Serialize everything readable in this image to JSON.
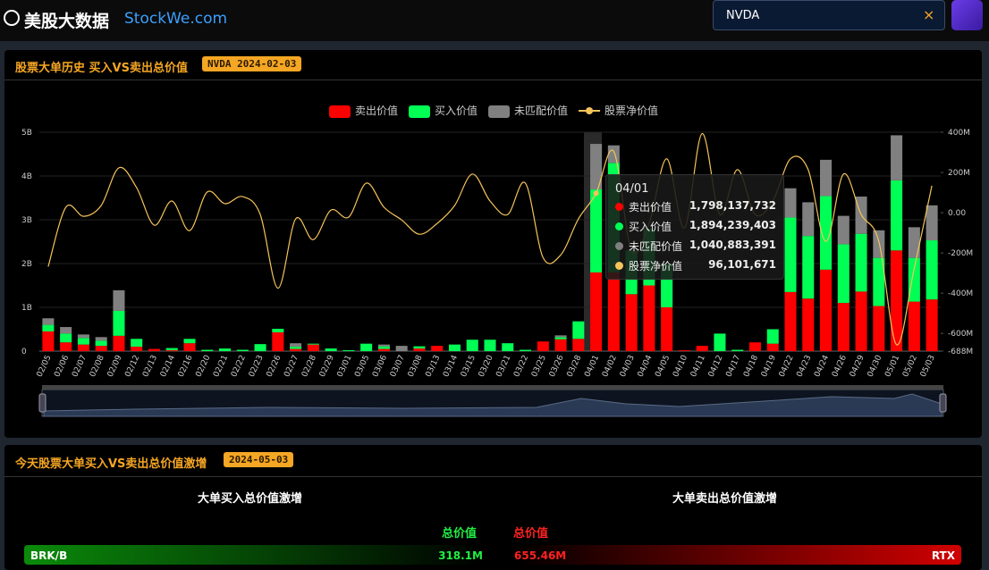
{
  "header": {
    "logo": "美股大数据",
    "site": "StockWe.com",
    "search": "NVDA"
  },
  "panel1": {
    "title": "股票大单历史 买入VS卖出总价值",
    "badge": "NVDA 2024-02-03"
  },
  "chart_data": {
    "type": "bar",
    "stacked": true,
    "categories": [
      "02/05",
      "02/06",
      "02/07",
      "02/08",
      "02/09",
      "02/12",
      "02/13",
      "02/14",
      "02/16",
      "02/20",
      "02/21",
      "02/22",
      "02/23",
      "02/26",
      "02/27",
      "02/28",
      "02/29",
      "03/01",
      "03/05",
      "03/06",
      "03/07",
      "03/08",
      "03/13",
      "03/14",
      "03/15",
      "03/20",
      "03/21",
      "03/22",
      "03/25",
      "03/26",
      "03/28",
      "04/01",
      "04/02",
      "04/03",
      "04/04",
      "04/05",
      "04/10",
      "04/11",
      "04/12",
      "04/17",
      "04/18",
      "04/19",
      "04/22",
      "04/23",
      "04/24",
      "04/26",
      "04/29",
      "04/30",
      "05/01",
      "05/02",
      "05/03"
    ],
    "series": [
      {
        "name": "卖出价值",
        "color": "#ff0000",
        "values": [
          450000000.0,
          200000000.0,
          150000000.0,
          120000000.0,
          350000000.0,
          100000000.0,
          50000000.0,
          20000000.0,
          180000000.0,
          0,
          0,
          0,
          0,
          430000000.0,
          50000000.0,
          150000000.0,
          0,
          0,
          0,
          50000000.0,
          0,
          60000000.0,
          120000000.0,
          0,
          0,
          0,
          0,
          0,
          220000000.0,
          270000000.0,
          280000000.0,
          1798137732,
          1800000000.0,
          1300000000.0,
          1500000000.0,
          1000000000.0,
          20000000.0,
          120000000.0,
          0,
          0,
          200000000.0,
          170000000.0,
          1350000000.0,
          1200000000.0,
          1860000000.0,
          1100000000.0,
          1360000000.0,
          1030000000.0,
          2300000000.0,
          1130000000.0,
          1180000000.0
        ]
      },
      {
        "name": "买入价值",
        "color": "#00ff55",
        "values": [
          150000000.0,
          200000000.0,
          150000000.0,
          120000000.0,
          570000000.0,
          180000000.0,
          0,
          50000000.0,
          100000000.0,
          30000000.0,
          60000000.0,
          30000000.0,
          160000000.0,
          80000000.0,
          50000000.0,
          20000000.0,
          60000000.0,
          20000000.0,
          170000000.0,
          60000000.0,
          0,
          50000000.0,
          0,
          150000000.0,
          260000000.0,
          260000000.0,
          180000000.0,
          30000000.0,
          0,
          50000000.0,
          400000000.0,
          1894239403,
          2500000000.0,
          1000000000.0,
          1300000000.0,
          1000000000.0,
          0,
          0,
          400000000.0,
          30000000.0,
          0,
          330000000.0,
          1700000000.0,
          1430000000.0,
          1680000000.0,
          1340000000.0,
          1320000000.0,
          1100000000.0,
          1600000000.0,
          1000000000.0,
          1350000000.0
        ]
      },
      {
        "name": "未匹配价值",
        "color": "#808080",
        "values": [
          150000000.0,
          150000000.0,
          80000000.0,
          80000000.0,
          470000000.0,
          0,
          0,
          0,
          0,
          0,
          0,
          0,
          0,
          0,
          80000000.0,
          0,
          0,
          0,
          0,
          40000000.0,
          120000000.0,
          0,
          0,
          0,
          0,
          0,
          0,
          0,
          0,
          40000000.0,
          0,
          1040883391,
          400000000.0,
          0,
          0,
          0,
          0,
          0,
          0,
          0,
          0,
          0,
          670000000.0,
          770000000.0,
          830000000.0,
          650000000.0,
          850000000.0,
          630000000.0,
          1030000000.0,
          700000000.0,
          800000000.0
        ]
      },
      {
        "name": "股票净价值",
        "color": "#f5c35a",
        "type": "line",
        "axis": "y2",
        "values": [
          -268000000.0,
          27000000.0,
          -18000000.0,
          36000000.0,
          223000000.0,
          125000000.0,
          -62000000.0,
          58000000.0,
          -89000000.0,
          103000000.0,
          45000000.0,
          80000000.0,
          -9000000.0,
          -375000000.0,
          -31000000.0,
          -134000000.0,
          13000000.0,
          -22000000.0,
          147000000.0,
          27000000.0,
          -36000000.0,
          -107000000.0,
          -54000000.0,
          36000000.0,
          192000000.0,
          58000000.0,
          -9000000.0,
          147000000.0,
          -223000000.0,
          -210000000.0,
          -31000000.0,
          96101671,
          304000000.0,
          -187000000.0,
          -54000000.0,
          268000000.0,
          -76000000.0,
          393000000.0,
          -9000000.0,
          214000000.0,
          -9000000.0,
          58000000.0,
          268000000.0,
          214000000.0,
          -143000000.0,
          192000000.0,
          -9000000.0,
          -143000000.0,
          -656000000.0,
          -277000000.0,
          134000000.0
        ]
      }
    ],
    "ylim": [
      0,
      5000000000.0
    ],
    "yticks": [
      0,
      {
        "value": 1000000000.0,
        "label": "1B"
      },
      {
        "value": 2000000000.0,
        "label": "2B"
      },
      {
        "value": 3000000000.0,
        "label": "3B"
      },
      {
        "value": 4000000000.0,
        "label": "4B"
      },
      {
        "value": 5000000000.0,
        "label": "5B"
      }
    ],
    "y2lim": [
      -688000000.0,
      400000000.0
    ],
    "y2ticks": [
      {
        "value": 400000000.0,
        "label": "400M"
      },
      {
        "value": 200000000.0,
        "label": "200M"
      },
      {
        "value": 0,
        "label": "0.00"
      },
      {
        "value": -200000000.0,
        "label": "-200M"
      },
      {
        "value": -400000000.0,
        "label": "-400M"
      },
      {
        "value": -600000000.0,
        "label": "-600M"
      },
      {
        "value": -688000000.0,
        "label": "-688M"
      }
    ],
    "legend": "top",
    "tooltip": {
      "labels": [
        "1,798,137,732",
        "1,894,239,403",
        "1,040,883,391",
        "96,101,671"
      ]
    }
  },
  "panel2": {
    "title": "今天股票大单买入VS卖出总价值激增",
    "badge": "2024-05-03",
    "buy": {
      "heading": "大单买入总价值激增",
      "column": "总价值",
      "rows": [
        {
          "symbol": "BRK/B",
          "value": "318.1M"
        }
      ]
    },
    "sell": {
      "heading": "大单卖出总价值激增",
      "column": "总价值",
      "rows": [
        {
          "symbol": "RTX",
          "value": "655.46M"
        }
      ]
    }
  }
}
